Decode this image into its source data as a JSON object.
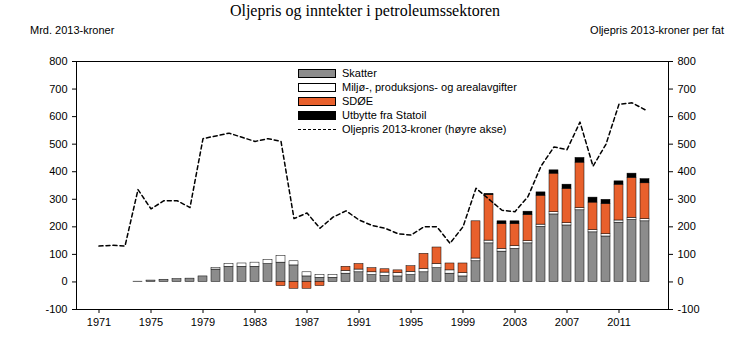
{
  "chart_data": {
    "type": "bar",
    "title": "Oljepris og inntekter i petroleumssektoren",
    "y_label": "Mrd. 2013-kroner",
    "y2_label": "Oljepris 2013-kroner per fat",
    "stacked": true,
    "grid": false,
    "legend": "top",
    "categories": [
      "1971",
      null,
      null,
      null,
      "1975",
      null,
      null,
      null,
      "1979",
      null,
      null,
      null,
      "1983",
      null,
      null,
      null,
      "1987",
      null,
      null,
      null,
      "1991",
      null,
      null,
      null,
      "1995",
      null,
      null,
      null,
      "1999",
      null,
      null,
      null,
      "2003",
      null,
      null,
      null,
      "2007",
      null,
      null,
      null,
      "2011",
      null,
      null
    ],
    "ylim": [
      -100,
      800
    ],
    "yticks": [
      -100,
      0,
      100,
      200,
      300,
      400,
      500,
      600,
      700,
      800
    ],
    "y2lim": [
      -100,
      800
    ],
    "y2ticks": [
      -100,
      0,
      100,
      200,
      300,
      400,
      500,
      600,
      700,
      800
    ],
    "series": [
      {
        "name": "Skatter",
        "type": "bar",
        "color": "#8c8c8c",
        "values": [
          0,
          0,
          0,
          1,
          5,
          8,
          10,
          12,
          20,
          45,
          55,
          55,
          55,
          65,
          70,
          60,
          20,
          15,
          15,
          30,
          35,
          25,
          22,
          20,
          25,
          35,
          50,
          30,
          20,
          75,
          140,
          110,
          120,
          140,
          200,
          245,
          205,
          260,
          180,
          165,
          215,
          225,
          220
        ]
      },
      {
        "name": "Miljø-, produksjons- og arealavgifter",
        "type": "bar",
        "color": "#ffffff",
        "values": [
          0,
          0,
          0,
          0,
          0,
          0,
          0,
          0,
          0,
          5,
          10,
          12,
          15,
          15,
          25,
          15,
          15,
          10,
          10,
          10,
          10,
          10,
          12,
          12,
          12,
          12,
          15,
          12,
          12,
          10,
          10,
          10,
          10,
          8,
          8,
          8,
          8,
          8,
          8,
          8,
          8,
          8,
          8
        ]
      },
      {
        "name": "SDØE",
        "type": "bar",
        "color": "#e8602c",
        "values": [
          0,
          0,
          0,
          0,
          0,
          0,
          0,
          0,
          0,
          0,
          0,
          0,
          0,
          0,
          -15,
          -25,
          -25,
          -15,
          0,
          15,
          20,
          15,
          12,
          10,
          20,
          55,
          60,
          25,
          35,
          135,
          165,
          90,
          80,
          95,
          105,
          140,
          125,
          165,
          100,
          110,
          130,
          145,
          130
        ]
      },
      {
        "name": "Utbytte fra Statoil",
        "type": "bar",
        "color": "#000000",
        "values": [
          0,
          0,
          0,
          0,
          0,
          0,
          0,
          0,
          0,
          0,
          0,
          0,
          0,
          0,
          0,
          0,
          0,
          0,
          0,
          0,
          0,
          0,
          0,
          0,
          0,
          0,
          0,
          0,
          0,
          0,
          5,
          10,
          10,
          12,
          12,
          12,
          15,
          17,
          18,
          15,
          12,
          15,
          15
        ]
      },
      {
        "name": "Oljepris 2013-kroner (høyre akse)",
        "type": "line",
        "axis": "y2",
        "line_style": "dashed",
        "color": "#000000",
        "values": [
          130,
          133,
          130,
          335,
          265,
          295,
          295,
          270,
          520,
          530,
          540,
          525,
          510,
          520,
          510,
          230,
          250,
          195,
          235,
          258,
          225,
          205,
          195,
          175,
          170,
          200,
          200,
          140,
          200,
          340,
          300,
          260,
          255,
          310,
          420,
          490,
          480,
          580,
          420,
          500,
          645,
          650,
          625
        ]
      }
    ]
  }
}
